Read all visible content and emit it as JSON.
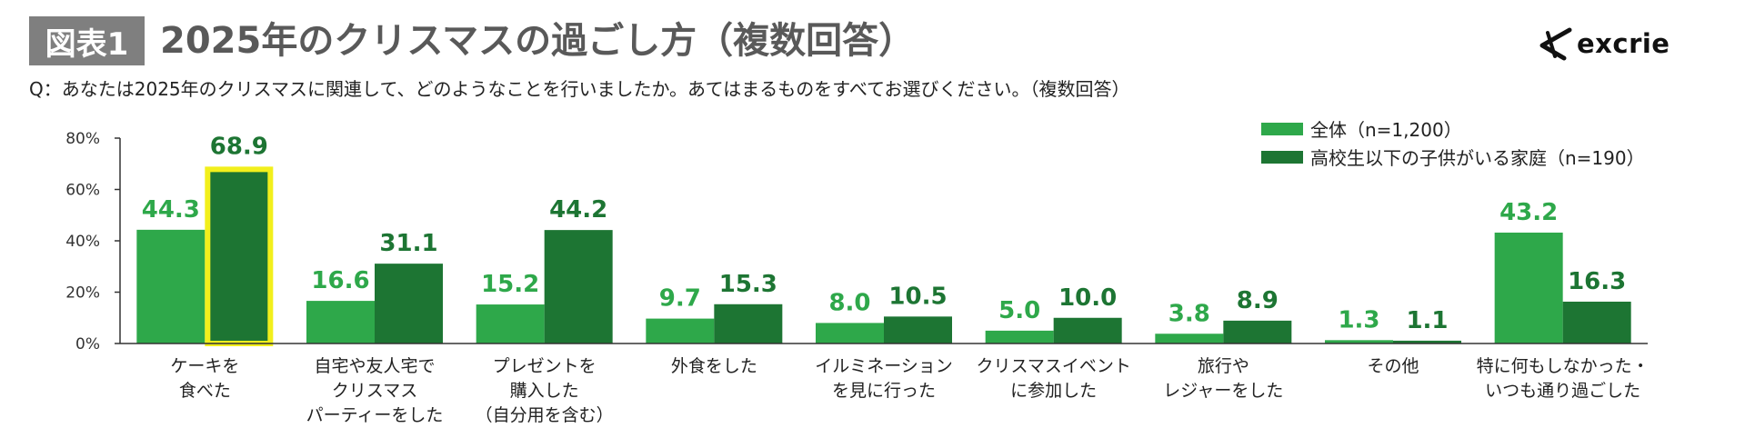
{
  "header": {
    "figure_label": "図表1",
    "title": "2025年のクリスマスの過ごし方（複数回答）",
    "question": "Q：あなたは2025年のクリスマスに関連して、どのようなことを行いましたか。あてはまるものをすべてお選びください。（複数回答）"
  },
  "logo": {
    "text": "excrie"
  },
  "colors": {
    "series1": "#2ea84a",
    "series2": "#1d7533",
    "highlight_border": "#f2ef1c",
    "axis": "#333333"
  },
  "chart_data": {
    "type": "bar",
    "categories": [
      "ケーキを\n食べた",
      "自宅や友人宅で\nクリスマス\nパーティーをした",
      "プレゼントを\n購入した\n（自分用を含む）",
      "外食をした",
      "イルミネーション\nを見に行った",
      "クリスマスイベント\nに参加した",
      "旅行や\nレジャーをした",
      "その他",
      "特に何もしなかった・\nいつも通り過ごした"
    ],
    "series": [
      {
        "name": "全体（n=1,200）",
        "values": [
          44.3,
          16.6,
          15.2,
          9.7,
          8.0,
          5.0,
          3.8,
          1.3,
          43.2
        ]
      },
      {
        "name": "高校生以下の子供がいる家庭（n=190）",
        "values": [
          68.9,
          31.1,
          44.2,
          15.3,
          10.5,
          10.0,
          8.9,
          1.1,
          16.3
        ]
      }
    ],
    "yticks": [
      "0%",
      "20%",
      "40%",
      "60%",
      "80%"
    ],
    "ylim": [
      0,
      80
    ],
    "highlight": {
      "series": 1,
      "category": 0
    },
    "legend_position": "top-right"
  }
}
